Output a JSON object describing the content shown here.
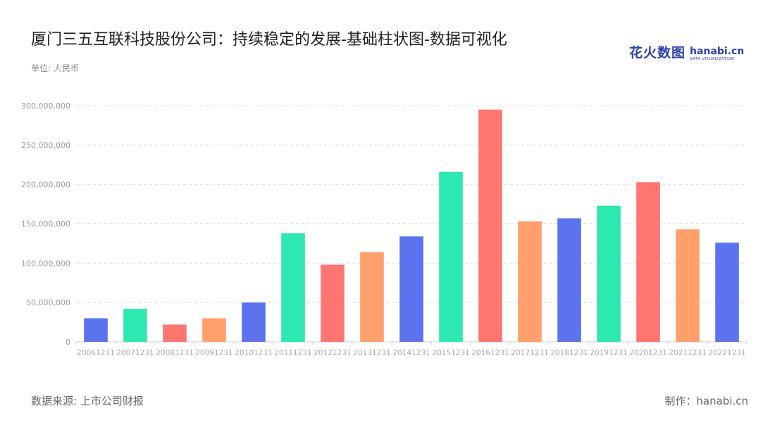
{
  "header": {
    "title": "厦门三五互联科技股份公司：持续稳定的发展-基础柱状图-数据可视化",
    "unit": "单位: 人民币"
  },
  "logo": {
    "cn": "花火数图",
    "en": "hanabi.cn",
    "sub": "DATA VISUALIZATION"
  },
  "footer": {
    "source": "数据来源: 上市公司财报",
    "maker": "制作：hanabi.cn"
  },
  "colors": [
    "#5b73ee",
    "#2de8b0",
    "#ff7671",
    "#ffa06c"
  ],
  "chart_data": {
    "type": "bar",
    "categories": [
      "20061231",
      "20071231",
      "20081231",
      "20091231",
      "20101231",
      "20111231",
      "20121231",
      "20131231",
      "20141231",
      "20151231",
      "20161231",
      "20171231",
      "20181231",
      "20191231",
      "20201231",
      "20211231",
      "20221231"
    ],
    "values": [
      30000000,
      42000000,
      22000000,
      30000000,
      50000000,
      138000000,
      98000000,
      114000000,
      134000000,
      216000000,
      295000000,
      153000000,
      157000000,
      173000000,
      203000000,
      143000000,
      126000000
    ],
    "bar_colors": [
      "#5b73ee",
      "#2de8b0",
      "#ff7671",
      "#ffa06c",
      "#5b73ee",
      "#2de8b0",
      "#ff7671",
      "#ffa06c",
      "#5b73ee",
      "#2de8b0",
      "#ff7671",
      "#ffa06c",
      "#5b73ee",
      "#2de8b0",
      "#ff7671",
      "#ffa06c",
      "#5b73ee"
    ],
    "yticks": [
      "0",
      "50,000,000",
      "100,000,000",
      "150,000,000",
      "200,000,000",
      "250,000,000",
      "300,000,000"
    ],
    "ylim": [
      0,
      300000000
    ],
    "grid": true
  }
}
